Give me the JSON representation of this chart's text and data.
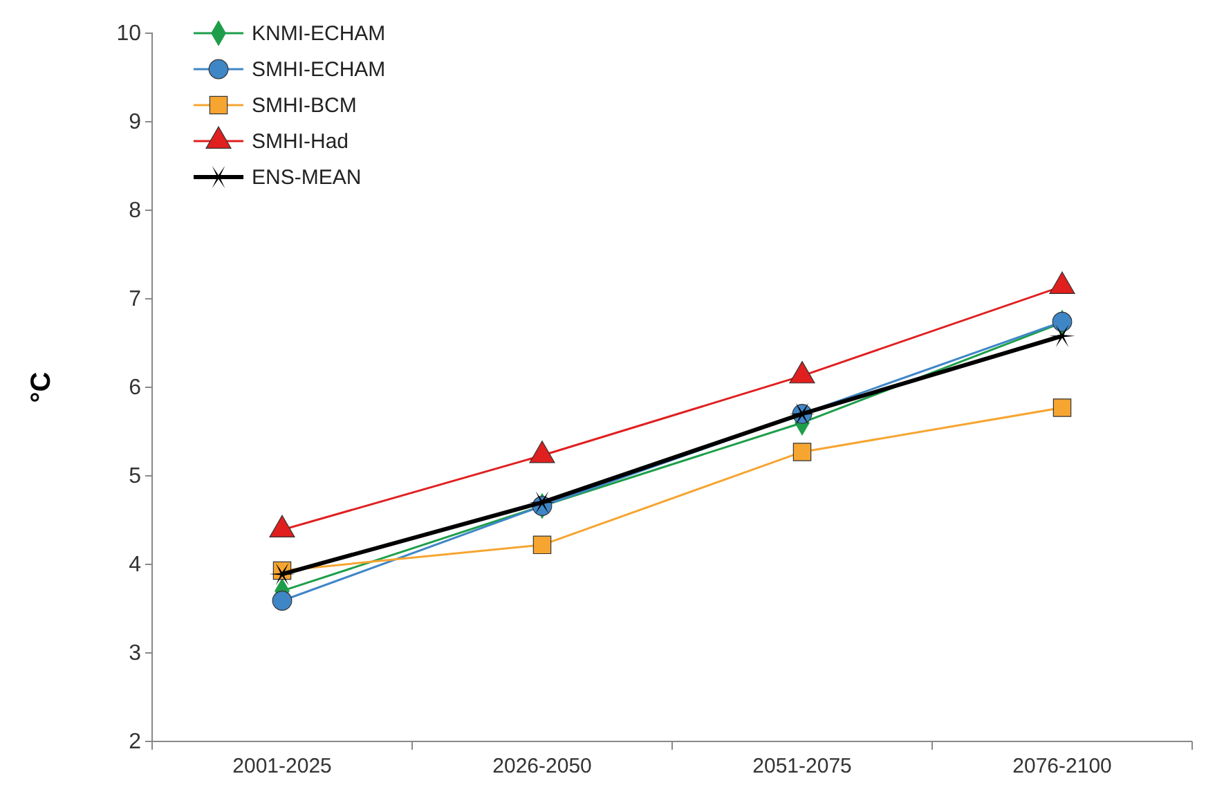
{
  "chart_data": {
    "type": "line",
    "ylabel": "°C",
    "categories": [
      "2001-2025",
      "2026-2050",
      "2051-2075",
      "2076-2100"
    ],
    "ylim": [
      2,
      10
    ],
    "yticks": [
      2,
      3,
      4,
      5,
      6,
      7,
      8,
      9,
      10
    ],
    "grid": false,
    "legend": "top left",
    "series": [
      {
        "name": "KNMI-ECHAM",
        "color": "#1e9e4a",
        "marker": "diamond",
        "values": [
          3.7,
          4.66,
          5.6,
          6.73
        ]
      },
      {
        "name": "SMHI-ECHAM",
        "color": "#3f86c6",
        "marker": "circle",
        "values": [
          3.59,
          4.66,
          5.7,
          6.74
        ]
      },
      {
        "name": "SMHI-BCM",
        "color": "#f6a531",
        "marker": "square",
        "values": [
          3.93,
          4.22,
          5.27,
          5.77
        ]
      },
      {
        "name": "SMHI-Had",
        "color": "#e01f1f",
        "marker": "triangle",
        "values": [
          4.39,
          5.23,
          6.13,
          7.14
        ]
      },
      {
        "name": "ENS-MEAN",
        "color": "#000000",
        "marker": "cross",
        "values": [
          3.89,
          4.7,
          5.7,
          6.58
        ]
      }
    ]
  }
}
